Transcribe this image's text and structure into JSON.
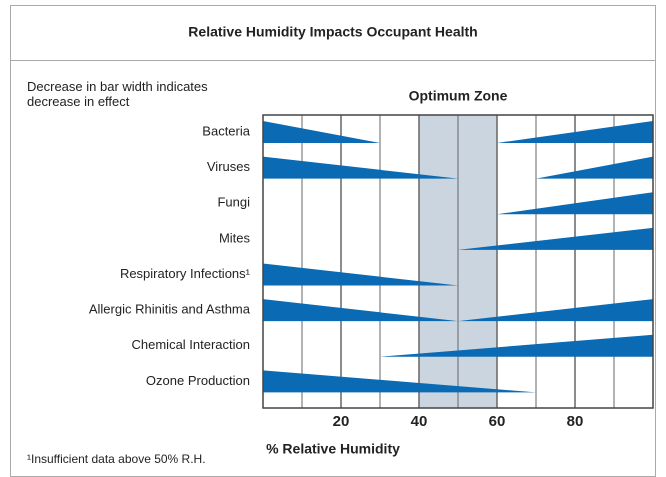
{
  "chart_data": {
    "type": "wedge",
    "title": "Relative Humidity Impacts Occupant Health",
    "subtitle": "Decrease in bar width indicates decrease in effect",
    "highlight_label": "Optimum Zone",
    "highlight_range": [
      40,
      60
    ],
    "xlabel": "% Relative Humidity",
    "footnote": "¹Insufficient data above 50% R.H.",
    "categories": [
      "Bacteria",
      "Viruses",
      "Fungi",
      "Mites",
      "Respiratory Infections¹",
      "Allergic Rhinitis and Asthma",
      "Chemical Interaction",
      "Ozone Production"
    ],
    "left_end": [
      30,
      50,
      null,
      null,
      50,
      50,
      null,
      70
    ],
    "right_start": [
      60,
      70,
      60,
      50,
      null,
      50,
      30,
      null
    ],
    "color": "#0a6ab4",
    "highlight_color": "#cbd5e0",
    "xlim": [
      0,
      100
    ],
    "xticks": [
      20,
      40,
      60,
      80
    ],
    "minor_ticks": [
      10,
      30,
      50,
      70,
      90
    ],
    "grid": true
  }
}
